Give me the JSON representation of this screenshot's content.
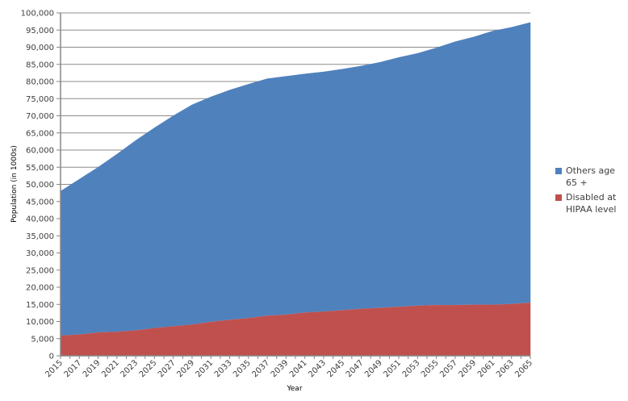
{
  "chart_data": {
    "type": "area",
    "stacked": true,
    "title": "",
    "xlabel": "Year",
    "ylabel": "Population (in 1000s)",
    "ylim": [
      0,
      100000
    ],
    "y_ticks": [
      0,
      5000,
      10000,
      15000,
      20000,
      25000,
      30000,
      35000,
      40000,
      45000,
      50000,
      55000,
      60000,
      65000,
      70000,
      75000,
      80000,
      85000,
      90000,
      95000,
      100000
    ],
    "y_tick_labels": [
      "0",
      "5,000",
      "10,000",
      "15,000",
      "20,000",
      "25,000",
      "30,000",
      "35,000",
      "40,000",
      "45,000",
      "50,000",
      "55,000",
      "60,000",
      "65,000",
      "70,000",
      "75,000",
      "80,000",
      "85,000",
      "90,000",
      "95,000",
      "100,000"
    ],
    "x": [
      "2015",
      "2017",
      "2019",
      "2021",
      "2023",
      "2025",
      "2027",
      "2029",
      "2031",
      "2033",
      "2035",
      "2037",
      "2039",
      "2041",
      "2043",
      "2045",
      "2047",
      "2049",
      "2051",
      "2053",
      "2055",
      "2057",
      "2059",
      "2061",
      "2063",
      "2065"
    ],
    "grid": true,
    "legend_position": "right",
    "series": [
      {
        "name": "Disabled at HIPAA level",
        "color": "#C0504D",
        "values": [
          6000,
          6300,
          6900,
          7100,
          7500,
          8200,
          8700,
          9200,
          10000,
          10600,
          11100,
          11800,
          12100,
          12700,
          13000,
          13400,
          13800,
          14100,
          14400,
          14700,
          14900,
          14900,
          15000,
          15000,
          15200,
          15600
        ]
      },
      {
        "name": "Others age 65 +",
        "color": "#4F81BD",
        "values": [
          42000,
          45200,
          48100,
          51700,
          55300,
          58300,
          61300,
          64000,
          65500,
          66900,
          68100,
          69000,
          69400,
          69500,
          69800,
          70200,
          70700,
          71500,
          72600,
          73500,
          74900,
          76700,
          78000,
          79700,
          80600,
          81600
        ]
      }
    ]
  },
  "legend": {
    "items": [
      {
        "label": "Others age 65 +",
        "color": "#4F81BD"
      },
      {
        "label": "Disabled at HIPAA level",
        "color": "#C0504D"
      }
    ]
  },
  "axes": {
    "x_title": "Year",
    "y_title": "Population (in 1000s)"
  }
}
